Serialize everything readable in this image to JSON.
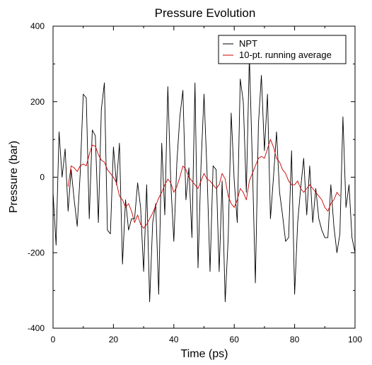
{
  "chart_data": {
    "type": "line",
    "title": "Pressure Evolution",
    "xlabel": "Time (ps)",
    "ylabel": "Pressure (bar)",
    "xlim": [
      0,
      100
    ],
    "ylim": [
      -400,
      400
    ],
    "xticks": [
      0,
      20,
      40,
      60,
      80,
      100
    ],
    "yticks": [
      -400,
      -200,
      0,
      200,
      400
    ],
    "xtick_labels": [
      "0",
      "20",
      "40",
      "60",
      "80",
      "100"
    ],
    "ytick_labels": [
      "-400",
      "-200",
      "0",
      "200",
      "400"
    ],
    "grid": false,
    "legend": "top-right",
    "series": [
      {
        "name": "NPT",
        "color": "#000000",
        "x": [
          0,
          1,
          2,
          3,
          4,
          5,
          6,
          7,
          8,
          9,
          10,
          11,
          12,
          13,
          14,
          15,
          16,
          17,
          18,
          19,
          20,
          21,
          22,
          23,
          24,
          25,
          26,
          27,
          28,
          29,
          30,
          31,
          32,
          33,
          34,
          35,
          36,
          37,
          38,
          39,
          40,
          41,
          42,
          43,
          44,
          45,
          46,
          47,
          48,
          49,
          50,
          51,
          52,
          53,
          54,
          55,
          56,
          57,
          58,
          59,
          60,
          61,
          62,
          63,
          64,
          65,
          66,
          67,
          68,
          69,
          70,
          71,
          72,
          73,
          74,
          75,
          76,
          77,
          78,
          79,
          80,
          81,
          82,
          83,
          84,
          85,
          86,
          87,
          88,
          89,
          90,
          91,
          92,
          93,
          94,
          95,
          96,
          97,
          98,
          99,
          100
        ],
        "y": [
          -40,
          -180,
          120,
          0,
          75,
          -90,
          20,
          -60,
          -130,
          10,
          220,
          210,
          -110,
          125,
          110,
          -120,
          180,
          250,
          -140,
          -150,
          80,
          -20,
          90,
          -230,
          -60,
          -140,
          -110,
          -110,
          -15,
          -80,
          -250,
          -20,
          -330,
          -120,
          -70,
          -310,
          90,
          -100,
          240,
          -15,
          -170,
          40,
          160,
          230,
          -60,
          25,
          -160,
          250,
          -240,
          30,
          220,
          10,
          -250,
          30,
          20,
          -250,
          -10,
          -330,
          -160,
          170,
          -10,
          -120,
          260,
          200,
          -40,
          320,
          40,
          -280,
          140,
          270,
          70,
          220,
          -110,
          0,
          120,
          -40,
          -100,
          -170,
          -160,
          70,
          -310,
          -120,
          -30,
          50,
          -100,
          30,
          -120,
          -30,
          -110,
          -140,
          -160,
          -160,
          -20,
          -130,
          -200,
          -150,
          160,
          -80,
          -20,
          -160,
          -200
        ]
      },
      {
        "name": "10-pt. running average",
        "color": "#cc0000",
        "x": [
          5,
          6,
          7,
          8,
          9,
          10,
          11,
          12,
          13,
          14,
          15,
          16,
          17,
          18,
          19,
          20,
          21,
          22,
          23,
          24,
          25,
          26,
          27,
          28,
          29,
          30,
          31,
          32,
          33,
          34,
          35,
          36,
          37,
          38,
          39,
          40,
          41,
          42,
          43,
          44,
          45,
          46,
          47,
          48,
          49,
          50,
          51,
          52,
          53,
          54,
          55,
          56,
          57,
          58,
          59,
          60,
          61,
          62,
          63,
          64,
          65,
          66,
          67,
          68,
          69,
          70,
          71,
          72,
          73,
          74,
          75,
          76,
          77,
          78,
          79,
          80,
          81,
          82,
          83,
          84,
          85,
          86,
          87,
          88,
          89,
          90,
          91,
          92,
          93,
          94,
          95
        ],
        "y": [
          -25,
          30,
          25,
          15,
          30,
          35,
          30,
          60,
          85,
          82,
          60,
          45,
          40,
          20,
          10,
          0,
          -15,
          -50,
          -60,
          -80,
          -70,
          -90,
          -120,
          -100,
          -125,
          -135,
          -125,
          -110,
          -95,
          -75,
          -55,
          -40,
          -20,
          -5,
          -15,
          -40,
          -25,
          0,
          30,
          20,
          0,
          -10,
          -20,
          -30,
          -10,
          10,
          -5,
          -10,
          -20,
          -30,
          -20,
          10,
          -5,
          -50,
          -70,
          -80,
          -60,
          -30,
          -40,
          -60,
          -10,
          10,
          30,
          50,
          55,
          50,
          75,
          100,
          80,
          50,
          40,
          20,
          10,
          -10,
          -20,
          -20,
          -10,
          -30,
          -40,
          -30,
          -20,
          -30,
          -40,
          -50,
          -60,
          -80,
          -90,
          -70,
          -60,
          -40,
          -50
        ]
      }
    ]
  }
}
